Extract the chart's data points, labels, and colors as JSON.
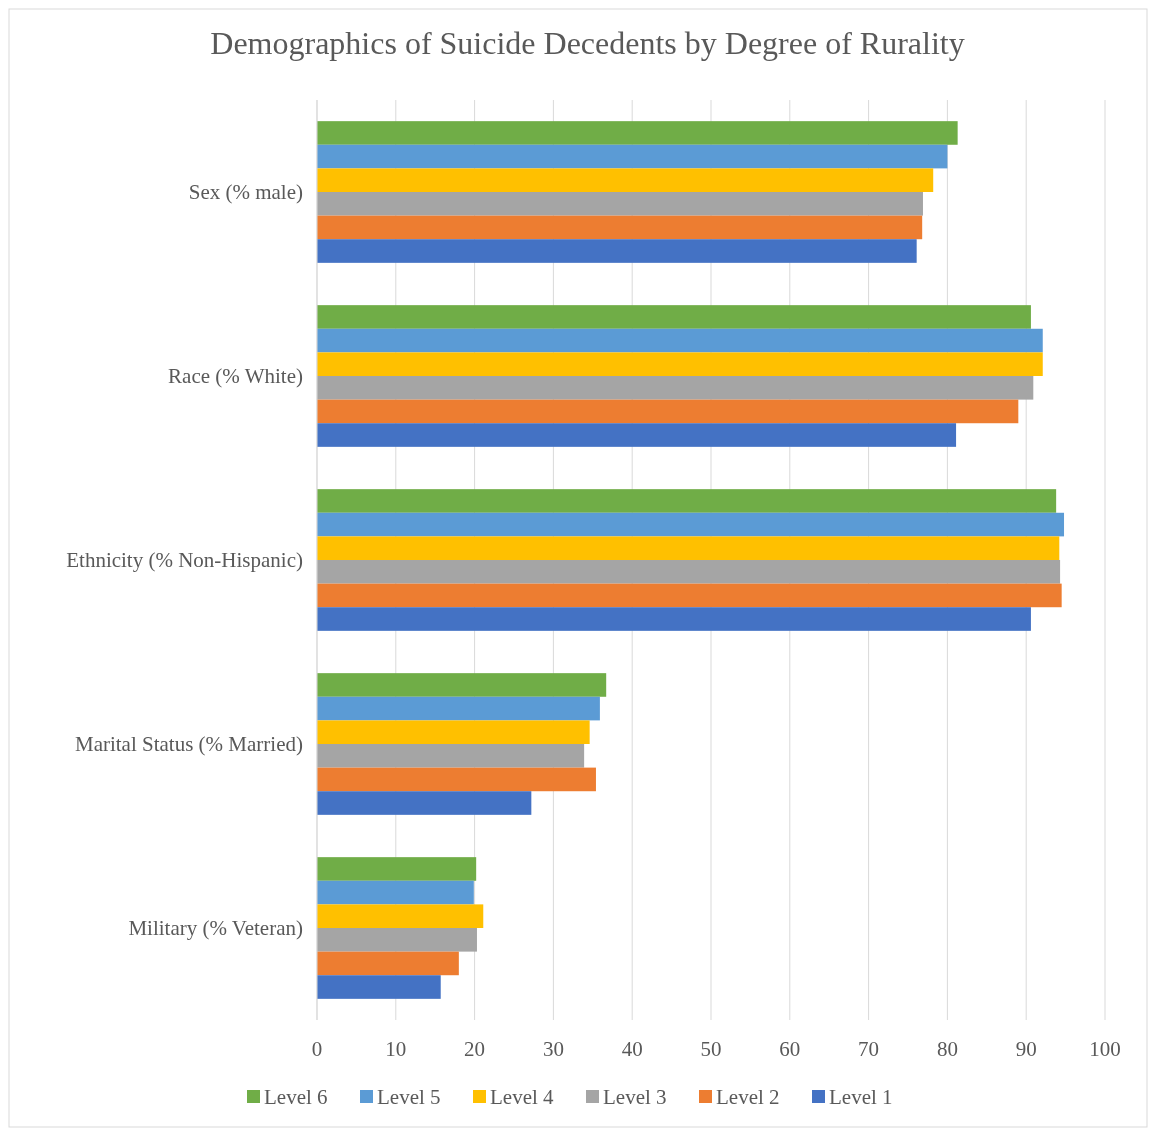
{
  "chart_data": {
    "type": "bar",
    "orientation": "horizontal",
    "title": "Demographics of Suicide Decedents by Degree of Rurality",
    "categories": [
      "Sex (% male)",
      "Race (% White)",
      "Ethnicity (% Non-Hispanic)",
      "Marital Status (% Married)",
      "Military (% Veteran)"
    ],
    "series": [
      {
        "name": "Level 6",
        "color": "#70ad47",
        "values": [
          81.3,
          90.6,
          93.8,
          36.7,
          20.2
        ]
      },
      {
        "name": "Level 5",
        "color": "#5b9bd5",
        "values": [
          80.0,
          92.1,
          94.8,
          35.9,
          19.9
        ]
      },
      {
        "name": "Level 4",
        "color": "#ffc000",
        "values": [
          78.2,
          92.1,
          94.2,
          34.6,
          21.1
        ]
      },
      {
        "name": "Level 3",
        "color": "#a5a5a5",
        "values": [
          76.9,
          90.9,
          94.3,
          33.9,
          20.3
        ]
      },
      {
        "name": "Level 2",
        "color": "#ed7d31",
        "values": [
          76.8,
          89.0,
          94.5,
          35.4,
          18.0
        ]
      },
      {
        "name": "Level 1",
        "color": "#4472c4",
        "values": [
          76.1,
          81.1,
          90.6,
          27.2,
          15.7
        ]
      }
    ],
    "xlim": [
      0,
      100
    ],
    "xticks": [
      0,
      10,
      20,
      30,
      40,
      50,
      60,
      70,
      80,
      90,
      100
    ],
    "grid": "x",
    "legend": "bottom"
  }
}
